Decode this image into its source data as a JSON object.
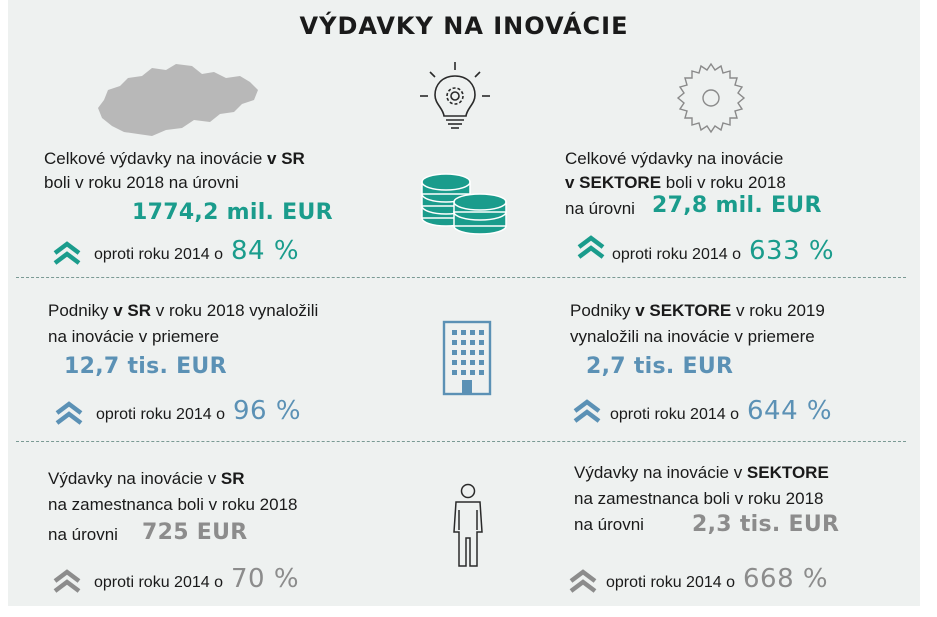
{
  "title": "VÝDAVKY NA INOVÁCIE",
  "rows": [
    {
      "left": {
        "line1_a": "Celkové výdavky na inovácie ",
        "line1_b": "v SR",
        "line2": "boli v roku 2018 na úrovni",
        "value": "1774,2 mil. EUR",
        "compare": "oproti roku 2014 o",
        "pct": "84 %"
      },
      "right": {
        "line1": "Celkové výdavky na inovácie",
        "line2_a": "v SEKTORE",
        "line2_b": " boli v roku 2018",
        "line3": "na úrovni",
        "value": "27,8 mil. EUR",
        "compare": "oproti roku 2014 o",
        "pct": "633 %"
      },
      "color": "#1a9c8c"
    },
    {
      "left": {
        "line1_a": "Podniky ",
        "line1_b": "v SR",
        "line1_c": " v roku 2018 vynaložili",
        "line2": "na inovácie v priemere",
        "value": "12,7 tis. EUR",
        "compare": "oproti roku 2014 o",
        "pct": "96 %"
      },
      "right": {
        "line1_a": "Podniky ",
        "line1_b": "v SEKTORE",
        "line1_c": " v roku 2019",
        "line2": "vynaložili  na inovácie v priemere",
        "value": "2,7 tis. EUR",
        "compare": "oproti roku 2014 o",
        "pct": "644 %"
      },
      "color": "#5b91b5"
    },
    {
      "left": {
        "line1_a": "Výdavky  na inovácie v ",
        "line1_b": "SR",
        "line2": "na zamestnanca boli v roku  2018",
        "line3": "na úrovni",
        "value": "725 EUR",
        "compare": "oproti roku 2014 o",
        "pct": "70 %"
      },
      "right": {
        "line1_a": "Výdavky  na inovácie v ",
        "line1_b": "SEKTORE",
        "line2": "na zamestnanca boli v roku  2018",
        "line3": "na úrovni",
        "value": "2,3 tis. EUR",
        "compare": "oproti roku 2014 o",
        "pct": "668 %"
      },
      "color": "#8c8c8c"
    }
  ],
  "icons": [
    "slovakia-map-icon",
    "lightbulb-gear-icon",
    "gear-icon",
    "coins-icon",
    "building-icon",
    "person-icon",
    "double-chevron-up-icon"
  ]
}
